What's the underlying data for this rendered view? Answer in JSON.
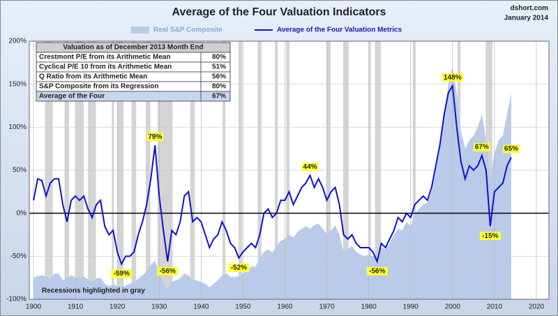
{
  "chart_data": {
    "type": "line",
    "title": "Average of the Four Valuation Indicators",
    "source": "dshort.com",
    "date": "January 2014",
    "note": "Recessions highlighted in gray",
    "x": [
      1900,
      1901,
      1902,
      1903,
      1904,
      1905,
      1906,
      1907,
      1908,
      1909,
      1910,
      1911,
      1912,
      1913,
      1914,
      1915,
      1916,
      1917,
      1918,
      1919,
      1920,
      1921,
      1922,
      1923,
      1924,
      1925,
      1926,
      1927,
      1928,
      1929,
      1930,
      1931,
      1932,
      1933,
      1934,
      1935,
      1936,
      1937,
      1938,
      1939,
      1940,
      1941,
      1942,
      1943,
      1944,
      1945,
      1946,
      1947,
      1948,
      1949,
      1950,
      1951,
      1952,
      1953,
      1954,
      1955,
      1956,
      1957,
      1958,
      1959,
      1960,
      1961,
      1962,
      1963,
      1964,
      1965,
      1966,
      1967,
      1968,
      1969,
      1970,
      1971,
      1972,
      1973,
      1974,
      1975,
      1976,
      1977,
      1978,
      1979,
      1980,
      1981,
      1982,
      1983,
      1984,
      1985,
      1986,
      1987,
      1988,
      1989,
      1990,
      1991,
      1992,
      1993,
      1994,
      1995,
      1996,
      1997,
      1998,
      1999,
      2000,
      2001,
      2002,
      2003,
      2004,
      2005,
      2006,
      2007,
      2008,
      2009,
      2010,
      2011,
      2012,
      2013,
      2014
    ],
    "series": [
      {
        "name": "Real S&P Composite",
        "style": "area",
        "color": "#b9cbe8",
        "values": [
          -75,
          -73,
          -72,
          -74,
          -76,
          -70,
          -70,
          -78,
          -76,
          -72,
          -75,
          -75,
          -74,
          -77,
          -80,
          -76,
          -75,
          -82,
          -85,
          -82,
          -85,
          -88,
          -84,
          -82,
          -80,
          -76,
          -72,
          -68,
          -60,
          -55,
          -70,
          -80,
          -88,
          -80,
          -78,
          -76,
          -70,
          -72,
          -78,
          -78,
          -80,
          -82,
          -86,
          -82,
          -78,
          -72,
          -70,
          -74,
          -74,
          -73,
          -70,
          -66,
          -62,
          -62,
          -52,
          -45,
          -42,
          -46,
          -38,
          -32,
          -30,
          -25,
          -28,
          -22,
          -18,
          -15,
          -18,
          -14,
          -12,
          -18,
          -24,
          -20,
          -14,
          -25,
          -45,
          -42,
          -38,
          -45,
          -48,
          -50,
          -48,
          -50,
          -52,
          -40,
          -42,
          -35,
          -25,
          -18,
          -20,
          -10,
          -15,
          0,
          5,
          10,
          12,
          25,
          50,
          75,
          110,
          150,
          170,
          140,
          95,
          75,
          85,
          90,
          100,
          115,
          85,
          40,
          70,
          85,
          90,
          115,
          140
        ]
      },
      {
        "name": "Average of the Four Valuation Metrics",
        "style": "line",
        "color": "#1010d0",
        "values": [
          15,
          40,
          38,
          20,
          35,
          40,
          40,
          10,
          -10,
          15,
          20,
          15,
          20,
          5,
          -5,
          10,
          15,
          -15,
          -25,
          -20,
          -45,
          -59,
          -50,
          -50,
          -45,
          -25,
          -10,
          10,
          40,
          79,
          20,
          -20,
          -56,
          -20,
          -25,
          -10,
          20,
          25,
          -10,
          -5,
          -10,
          -25,
          -40,
          -30,
          -25,
          -10,
          -20,
          -35,
          -40,
          -52,
          -45,
          -40,
          -35,
          -40,
          -25,
          0,
          5,
          -5,
          0,
          15,
          15,
          25,
          10,
          20,
          30,
          35,
          44,
          30,
          40,
          30,
          15,
          25,
          30,
          10,
          -25,
          -30,
          -25,
          -35,
          -40,
          -40,
          -40,
          -45,
          -56,
          -35,
          -40,
          -30,
          -20,
          -5,
          -10,
          0,
          -5,
          10,
          15,
          20,
          15,
          30,
          55,
          80,
          115,
          140,
          148,
          100,
          60,
          40,
          55,
          50,
          55,
          67,
          50,
          -15,
          25,
          30,
          35,
          55,
          65
        ]
      }
    ],
    "annotations": [
      {
        "x": 1921,
        "y": -59,
        "label": "-59%"
      },
      {
        "x": 1929,
        "y": 79,
        "label": "79%"
      },
      {
        "x": 1932,
        "y": -56,
        "label": "-56%"
      },
      {
        "x": 1949,
        "y": -52,
        "label": "-52%"
      },
      {
        "x": 1966,
        "y": 44,
        "label": "44%"
      },
      {
        "x": 1982,
        "y": -56,
        "label": "-56%"
      },
      {
        "x": 2000,
        "y": 148,
        "label": "148%"
      },
      {
        "x": 2007,
        "y": 67,
        "label": "67%"
      },
      {
        "x": 2009,
        "y": -15,
        "label": "-15%"
      },
      {
        "x": 2014,
        "y": 65,
        "label": "65%"
      }
    ],
    "recessions": [
      [
        1902.7,
        1904.6
      ],
      [
        1907.4,
        1908.5
      ],
      [
        1910.1,
        1912.0
      ],
      [
        1913.0,
        1914.9
      ],
      [
        1918.7,
        1919.2
      ],
      [
        1920.0,
        1921.5
      ],
      [
        1923.4,
        1924.5
      ],
      [
        1926.8,
        1927.9
      ],
      [
        1929.6,
        1933.2
      ],
      [
        1937.4,
        1938.5
      ],
      [
        1945.1,
        1945.8
      ],
      [
        1948.9,
        1949.8
      ],
      [
        1953.5,
        1954.4
      ],
      [
        1957.6,
        1958.3
      ],
      [
        1960.3,
        1961.1
      ],
      [
        1969.9,
        1970.9
      ],
      [
        1973.9,
        1975.2
      ],
      [
        1980.0,
        1980.5
      ],
      [
        1981.5,
        1982.9
      ],
      [
        1990.5,
        1991.2
      ],
      [
        2001.2,
        2001.9
      ],
      [
        2007.9,
        2009.5
      ]
    ],
    "recession_color": "#d4d4d4",
    "table": {
      "title": "Valuation as of December 2013 Month End",
      "rows": [
        [
          "Crestmont P/E from its Arithmetic Mean",
          "80%"
        ],
        [
          "Cyclical P/E 10 from its Arithmetic Mean",
          "51%"
        ],
        [
          "Q Ratio from its Arithmetic Mean",
          "56%"
        ],
        [
          "S&P Composite from its Regression",
          "80%"
        ],
        [
          "Average of the Four",
          "67%"
        ]
      ]
    },
    "xlim": [
      1899,
      2023
    ],
    "xticks": [
      1900,
      1910,
      1920,
      1930,
      1940,
      1950,
      1960,
      1970,
      1980,
      1990,
      2000,
      2010,
      2020
    ],
    "ylim": [
      -100,
      200
    ],
    "yticks": [
      {
        "value": -100,
        "label": "-100%"
      },
      {
        "value": -50,
        "label": "-50%"
      },
      {
        "value": 0,
        "label": "0%"
      },
      {
        "value": 50,
        "label": "50%"
      },
      {
        "value": 100,
        "label": "100%"
      },
      {
        "value": 150,
        "label": "150%"
      },
      {
        "value": 200,
        "label": "200%"
      }
    ],
    "grid": true
  }
}
